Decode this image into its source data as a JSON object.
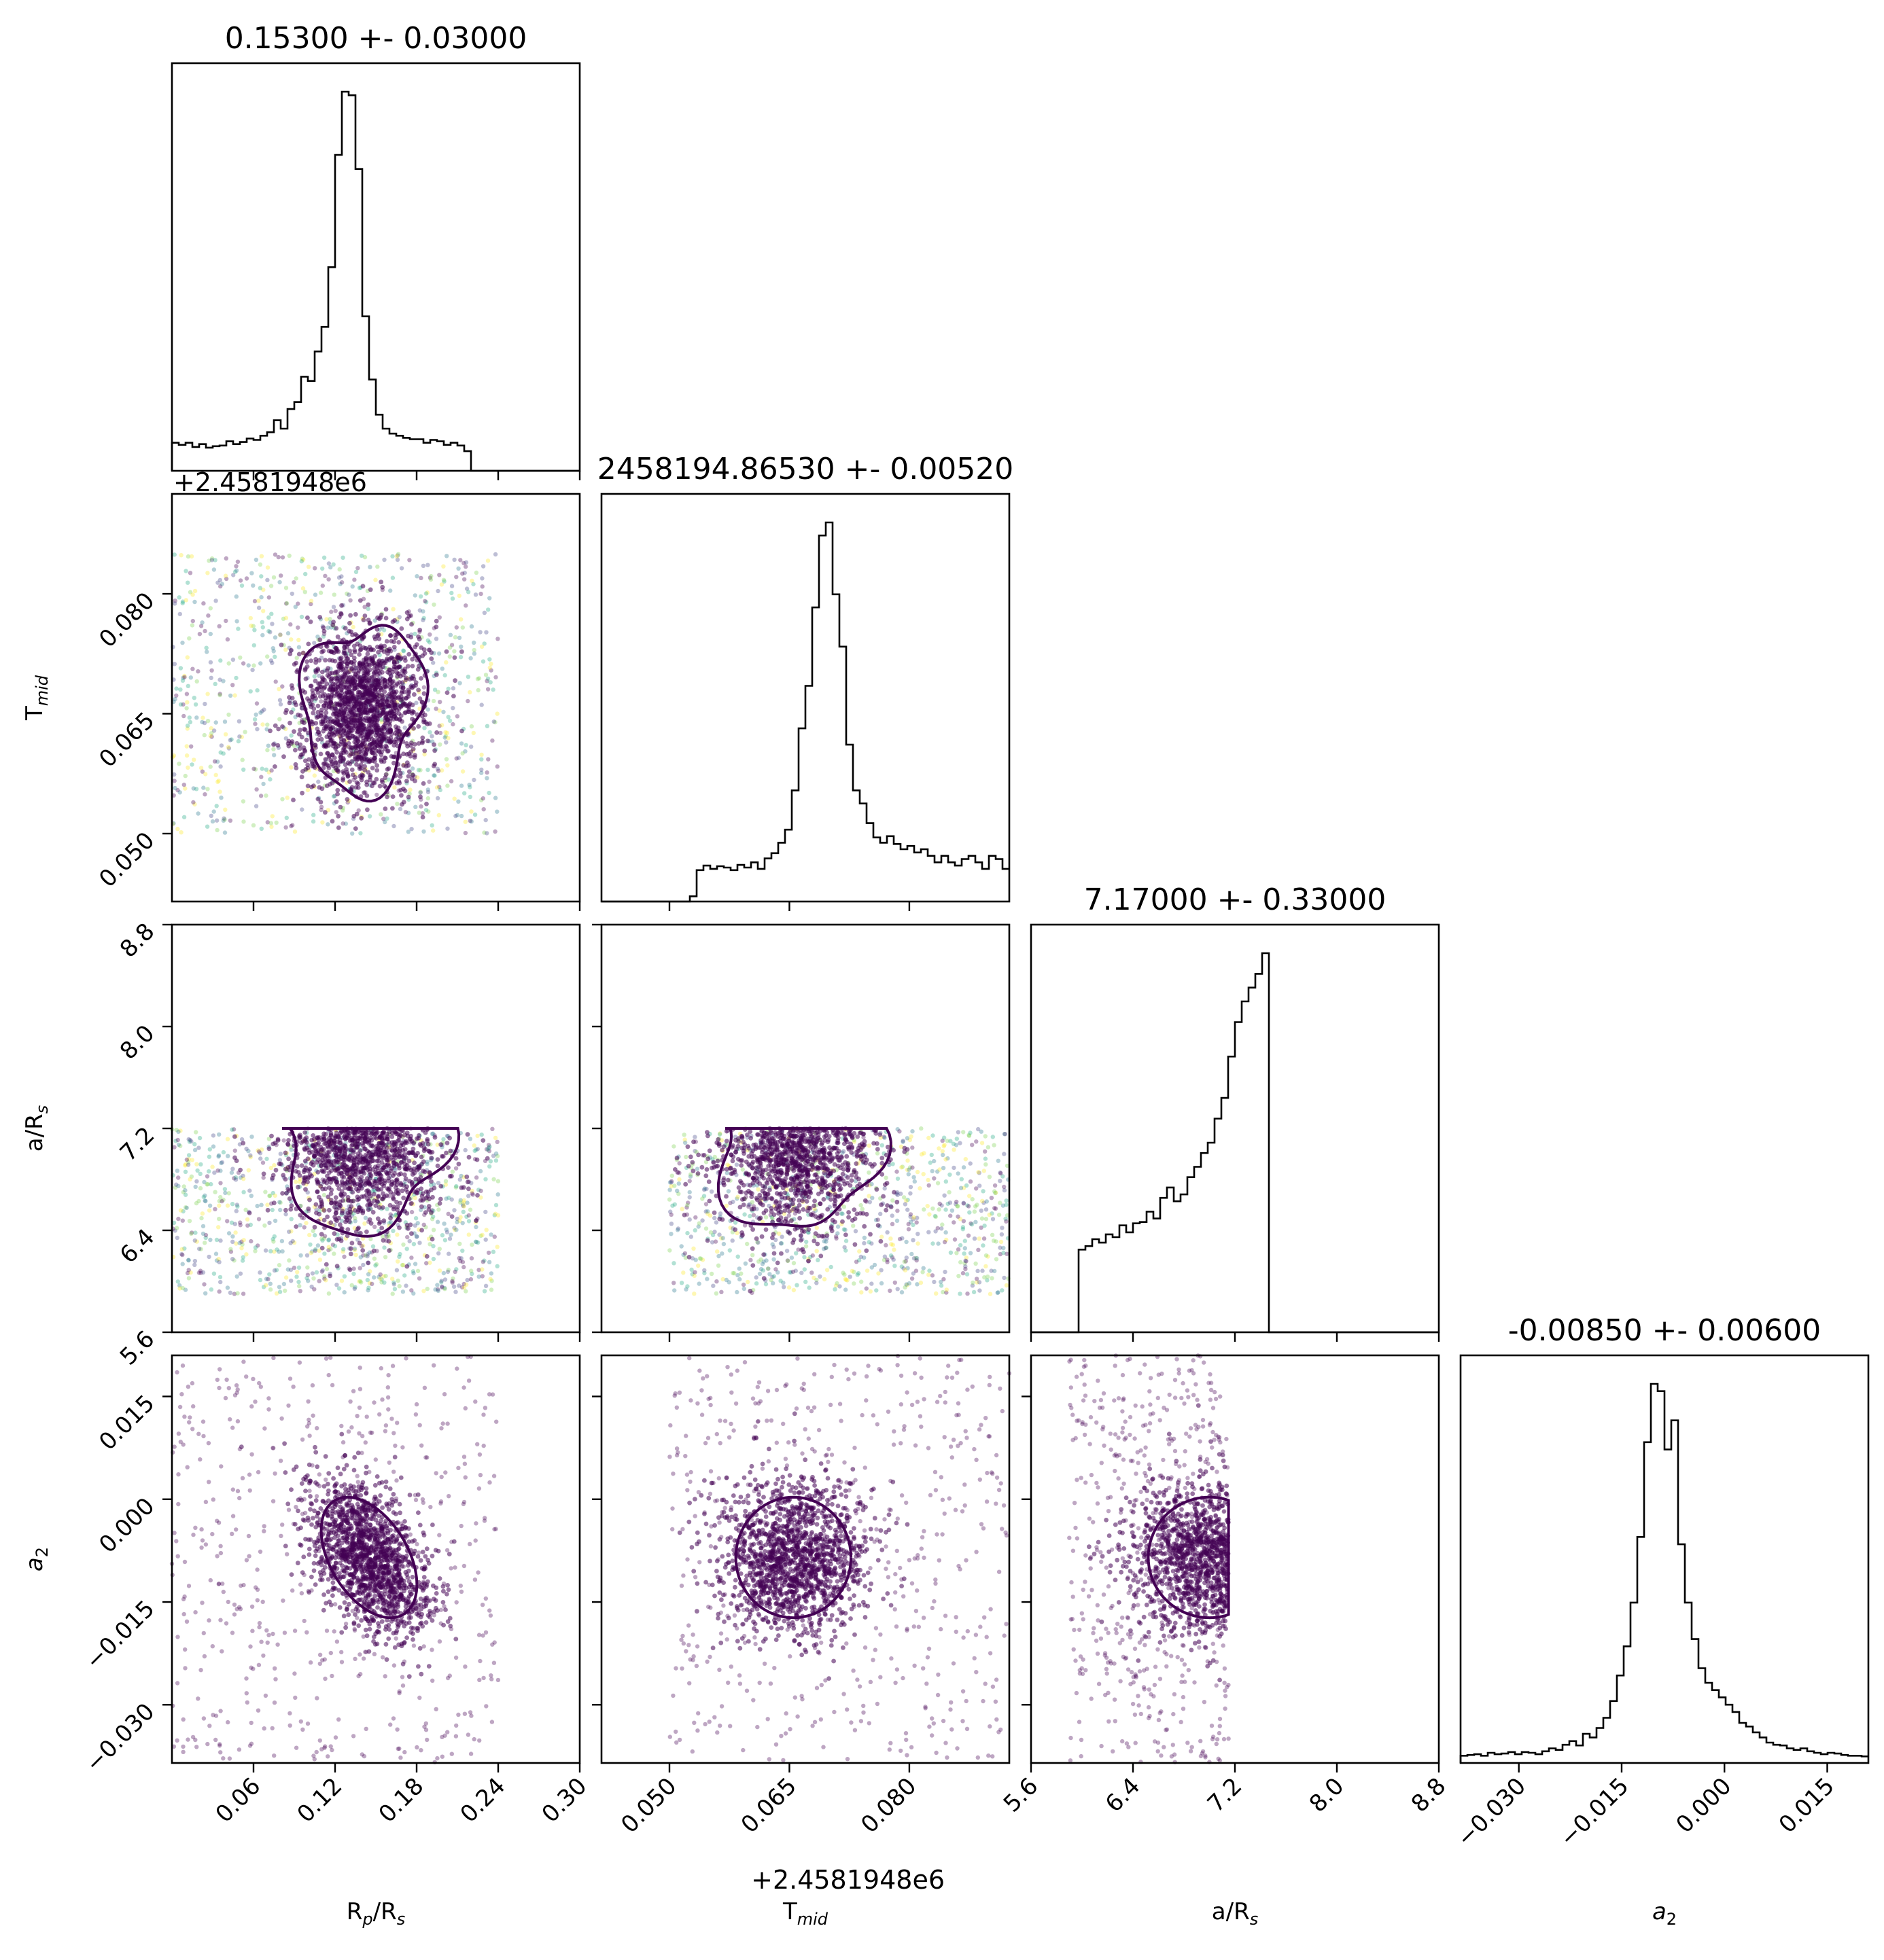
{
  "chart_data": {
    "type": "scatter",
    "subtype": "corner-plot",
    "parameters": [
      {
        "name": "R_p/R_s",
        "label": "R",
        "sub": "p",
        "label_tail": "/R",
        "tail_sub": "s",
        "italic": false,
        "range": [
          0.0,
          0.3
        ],
        "ticks": [
          0.06,
          0.12,
          0.18,
          0.24,
          0.3
        ],
        "tick_labels": [
          "0.06",
          "0.12",
          "0.18",
          "0.24",
          "0.30"
        ],
        "title": "0.15300 +- 0.03000",
        "median": 0.153,
        "sigma": 0.03,
        "hist": [
          40,
          37,
          40,
          34,
          38,
          33,
          35,
          36,
          42,
          38,
          41,
          46,
          44,
          50,
          55,
          72,
          60,
          88,
          98,
          134,
          128,
          170,
          205,
          290,
          450,
          540,
          535,
          430,
          220,
          130,
          80,
          60,
          53,
          50,
          47,
          45,
          45,
          40,
          44,
          42,
          37,
          40,
          36,
          28,
          0,
          0,
          0,
          0,
          0,
          0,
          0,
          0,
          0,
          0,
          0,
          0,
          0,
          0,
          0,
          0
        ]
      },
      {
        "name": "T_mid",
        "label": "T",
        "sub": "mid",
        "label_tail": "",
        "tail_sub": "",
        "italic": false,
        "offset": "+2.4581948e6",
        "range": [
          0.0415,
          0.0925
        ],
        "ticks": [
          0.05,
          0.065,
          0.08
        ],
        "tick_labels": [
          "0.050",
          "0.065",
          "0.080"
        ],
        "title": "2458194.86530 +- 0.00520",
        "median": 0.0653,
        "sigma": 0.0052,
        "hist": [
          0,
          0,
          0,
          0,
          0,
          0,
          0,
          0,
          0,
          0,
          0,
          0,
          0,
          8,
          48,
          55,
          50,
          54,
          52,
          48,
          56,
          52,
          60,
          50,
          66,
          74,
          90,
          110,
          170,
          265,
          330,
          450,
          560,
          580,
          470,
          390,
          240,
          170,
          150,
          120,
          98,
          90,
          100,
          88,
          80,
          85,
          75,
          80,
          70,
          60,
          70,
          60,
          55,
          65,
          70,
          60,
          50,
          70,
          65,
          50
        ]
      },
      {
        "name": "a/R_s",
        "label": "a/R",
        "sub": "s",
        "label_tail": "",
        "tail_sub": "",
        "italic": false,
        "range": [
          5.6,
          8.8
        ],
        "ticks": [
          5.6,
          6.4,
          7.2,
          8.0,
          8.8
        ],
        "tick_labels": [
          "5.6",
          "6.4",
          "7.2",
          "8.0",
          "8.8"
        ],
        "title": "7.17000 +- 0.33000",
        "median": 7.17,
        "sigma": 0.33,
        "hist": [
          0,
          0,
          0,
          0,
          0,
          0,
          0,
          120,
          125,
          135,
          130,
          142,
          138,
          155,
          145,
          158,
          160,
          175,
          165,
          195,
          210,
          190,
          200,
          225,
          240,
          260,
          275,
          310,
          340,
          400,
          450,
          480,
          500,
          520,
          550,
          0,
          0,
          0,
          0,
          0,
          0,
          0,
          0,
          0,
          0,
          0,
          0,
          0,
          0,
          0,
          0,
          0,
          0,
          0,
          0,
          0,
          0,
          0,
          0,
          0
        ]
      },
      {
        "name": "a_2",
        "label": "a",
        "sub": "2",
        "label_tail": "",
        "tail_sub": "",
        "italic": true,
        "range": [
          -0.0385,
          0.021
        ],
        "ticks": [
          -0.03,
          -0.015,
          0.0,
          0.015
        ],
        "tick_labels": [
          "−0.030",
          "−0.015",
          "0.000",
          "0.015"
        ],
        "title": "-0.00850 +- 0.00600",
        "median": -0.0085,
        "sigma": 0.006,
        "hist": [
          10,
          11,
          12,
          10,
          14,
          12,
          13,
          15,
          12,
          15,
          14,
          12,
          16,
          20,
          18,
          25,
          30,
          24,
          40,
          35,
          48,
          62,
          85,
          120,
          160,
          220,
          310,
          440,
          520,
          510,
          430,
          470,
          300,
          220,
          170,
          130,
          110,
          100,
          90,
          80,
          70,
          55,
          50,
          42,
          35,
          28,
          25,
          24,
          20,
          18,
          20,
          16,
          14,
          12,
          14,
          13,
          11,
          10,
          10,
          9
        ]
      }
    ],
    "pairs": [
      {
        "x": 0,
        "y": 1,
        "cx": 0.14,
        "cy": 0.0658,
        "sx": 0.022,
        "sy": 0.0052,
        "rho": 0.1,
        "x_span": [
          0.0,
          0.24
        ],
        "y_span": [
          0.05,
          0.085
        ],
        "tail": 0.65,
        "coloured": true
      },
      {
        "x": 0,
        "y": 2,
        "cx": 0.14,
        "cy": 7.1,
        "sx": 0.03,
        "sy": 0.35,
        "rho": 0.0,
        "x_span": [
          0.0,
          0.24
        ],
        "y_span": [
          5.9,
          7.2
        ],
        "tail": 0.65,
        "coloured": true
      },
      {
        "x": 1,
        "y": 2,
        "cx": 0.0658,
        "cy": 7.1,
        "sx": 0.005,
        "sy": 0.35,
        "rho": 0.0,
        "x_span": [
          0.05,
          0.0925
        ],
        "y_span": [
          5.9,
          7.2
        ],
        "tail": 0.65,
        "coloured": true
      },
      {
        "x": 0,
        "y": 3,
        "cx": 0.145,
        "cy": -0.0085,
        "sx": 0.022,
        "sy": 0.0055,
        "rho": -0.45,
        "x_span": [
          0.0,
          0.24
        ],
        "y_span": [
          -0.0385,
          0.021
        ],
        "tail": 0.35,
        "coloured": false
      },
      {
        "x": 1,
        "y": 3,
        "cx": 0.0655,
        "cy": -0.0085,
        "sx": 0.0045,
        "sy": 0.0055,
        "rho": 0.0,
        "x_span": [
          0.05,
          0.0925
        ],
        "y_span": [
          -0.0385,
          0.021
        ],
        "tail": 0.4,
        "coloured": false
      },
      {
        "x": 2,
        "y": 3,
        "cx": 7.0,
        "cy": -0.0085,
        "sx": 0.3,
        "sy": 0.0055,
        "rho": 0.0,
        "x_span": [
          5.9,
          7.15
        ],
        "y_span": [
          -0.0385,
          0.021
        ],
        "tail": 0.4,
        "coloured": false
      }
    ],
    "grid": false,
    "legend": "none",
    "colormap": "viridis",
    "contour_color": "#440154",
    "point_color": "#440154"
  }
}
